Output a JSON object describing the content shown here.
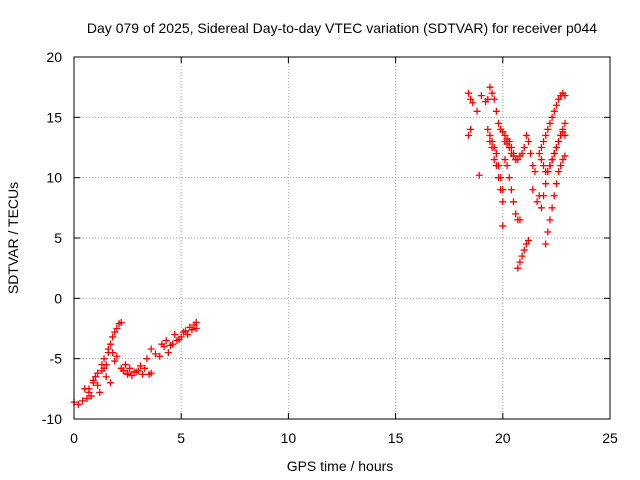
{
  "chart_data": {
    "type": "scatter",
    "title": "Day 079 of 2025, Sidereal Day-to-day VTEC variation (SDTVAR) for receiver p044",
    "xlabel": "GPS time / hours",
    "ylabel": "SDTVAR / TECUs",
    "xlim": [
      0,
      25
    ],
    "ylim": [
      -10,
      20
    ],
    "xticks": [
      "0",
      "5",
      "10",
      "15",
      "20",
      "25"
    ],
    "yticks": [
      "-10",
      "-5",
      "0",
      "5",
      "10",
      "15",
      "20"
    ],
    "grid": true,
    "marker": "plus",
    "color": "#ff0000",
    "x": [
      0.0,
      0.2,
      0.4,
      0.6,
      0.7,
      0.8,
      0.9,
      1.0,
      1.1,
      1.2,
      1.3,
      1.4,
      1.5,
      1.6,
      1.7,
      1.8,
      1.9,
      2.0,
      2.1,
      2.2,
      2.3,
      2.4,
      2.5,
      2.6,
      2.8,
      3.0,
      3.2,
      3.4,
      3.6,
      3.8,
      4.0,
      4.2,
      4.4,
      4.6,
      4.8,
      5.0,
      5.2,
      5.4,
      5.6,
      5.7,
      1.4,
      1.6,
      1.8,
      2.0,
      2.2,
      2.3,
      2.5,
      2.7,
      2.9,
      3.1,
      3.3,
      3.5,
      3.6,
      0.5,
      0.7,
      0.9,
      1.1,
      1.3,
      1.5,
      1.7,
      1.9,
      4.1,
      4.3,
      4.5,
      4.7,
      4.9,
      5.1,
      5.3,
      5.5,
      5.7,
      18.4,
      18.5,
      18.5,
      18.4,
      18.6,
      18.8,
      18.9,
      19.0,
      19.2,
      19.3,
      19.4,
      19.5,
      19.6,
      19.7,
      19.8,
      19.9,
      20.0,
      20.1,
      20.2,
      20.3,
      20.4,
      20.5,
      20.6,
      19.4,
      19.5,
      19.6,
      19.7,
      19.8,
      19.9,
      20.0,
      20.1,
      20.2,
      20.3,
      20.4,
      20.5,
      20.6,
      20.7,
      20.8,
      19.3,
      19.4,
      19.5,
      19.6,
      19.7,
      19.8,
      19.9,
      20.0,
      20.0,
      20.1,
      20.2,
      20.3,
      20.4,
      20.5,
      20.6,
      20.7,
      20.8,
      20.9,
      21.0,
      21.1,
      21.2,
      21.3,
      21.4,
      21.5,
      20.7,
      20.8,
      20.9,
      21.0,
      21.1,
      21.2,
      21.4,
      21.6,
      21.7,
      21.8,
      21.9,
      22.0,
      22.1,
      22.2,
      22.3,
      22.4,
      22.5,
      22.6,
      22.7,
      22.8,
      22.9,
      21.8,
      21.9,
      22.0,
      22.1,
      22.2,
      22.3,
      22.4,
      22.5,
      22.6,
      22.7,
      22.8,
      22.9,
      21.7,
      21.8,
      21.9,
      22.0,
      22.1,
      22.2,
      22.3,
      22.4,
      22.5,
      22.6,
      22.7,
      22.8,
      22.9,
      22.0,
      22.1,
      22.2,
      22.3,
      22.4,
      22.5,
      22.6,
      22.7,
      22.8,
      22.9
    ],
    "y": [
      -8.6,
      -8.8,
      -8.5,
      -8.3,
      -7.5,
      -8.1,
      -7.0,
      -6.5,
      -7.2,
      -7.8,
      -6.0,
      -5.8,
      -5.5,
      -4.5,
      -3.8,
      -3.2,
      -2.8,
      -2.5,
      -2.1,
      -2.0,
      -6.0,
      -5.5,
      -6.2,
      -5.8,
      -6.1,
      -6.0,
      -6.3,
      -5.0,
      -4.2,
      -4.6,
      -4.8,
      -4.0,
      -4.5,
      -3.8,
      -3.5,
      -3.2,
      -2.7,
      -2.4,
      -2.2,
      -2.0,
      -5.0,
      -4.2,
      -4.5,
      -4.8,
      -5.8,
      -6.0,
      -6.3,
      -6.4,
      -6.1,
      -5.6,
      -5.8,
      -6.3,
      -6.2,
      -7.5,
      -7.8,
      -6.8,
      -6.2,
      -5.5,
      -6.5,
      -7.0,
      -5.2,
      -3.8,
      -3.5,
      -3.9,
      -3.0,
      -3.4,
      -2.8,
      -3.0,
      -2.6,
      -2.5,
      17.0,
      16.5,
      14.0,
      13.5,
      16.2,
      15.5,
      10.2,
      16.8,
      16.3,
      16.5,
      17.5,
      17.0,
      16.5,
      15.5,
      14.5,
      14.0,
      13.8,
      13.5,
      13.2,
      13.0,
      12.5,
      12.0,
      11.5,
      13.0,
      12.5,
      11.5,
      11.0,
      10.0,
      9.0,
      8.0,
      11.5,
      11.0,
      10.0,
      9.0,
      8.0,
      7.0,
      6.5,
      6.5,
      14.0,
      13.5,
      13.0,
      12.5,
      12.0,
      11.0,
      10.0,
      9.0,
      6.0,
      13.0,
      12.8,
      12.5,
      12.0,
      11.8,
      11.5,
      11.5,
      11.8,
      12.0,
      12.5,
      13.5,
      13.0,
      12.0,
      11.0,
      10.5,
      2.5,
      3.0,
      3.5,
      4.0,
      4.5,
      4.8,
      9.0,
      8.0,
      8.5,
      12.5,
      13.0,
      13.5,
      14.0,
      14.5,
      15.0,
      15.5,
      16.0,
      16.5,
      16.8,
      17.0,
      16.8,
      7.5,
      8.5,
      9.5,
      10.5,
      11.0,
      11.5,
      12.0,
      12.5,
      13.0,
      13.5,
      14.0,
      14.5,
      12.0,
      11.5,
      11.0,
      10.5,
      10.5,
      11.0,
      11.5,
      12.0,
      12.5,
      13.0,
      13.5,
      13.8,
      13.5,
      4.5,
      5.5,
      6.5,
      7.5,
      8.5,
      9.5,
      10.5,
      11.0,
      11.5,
      11.8
    ]
  }
}
